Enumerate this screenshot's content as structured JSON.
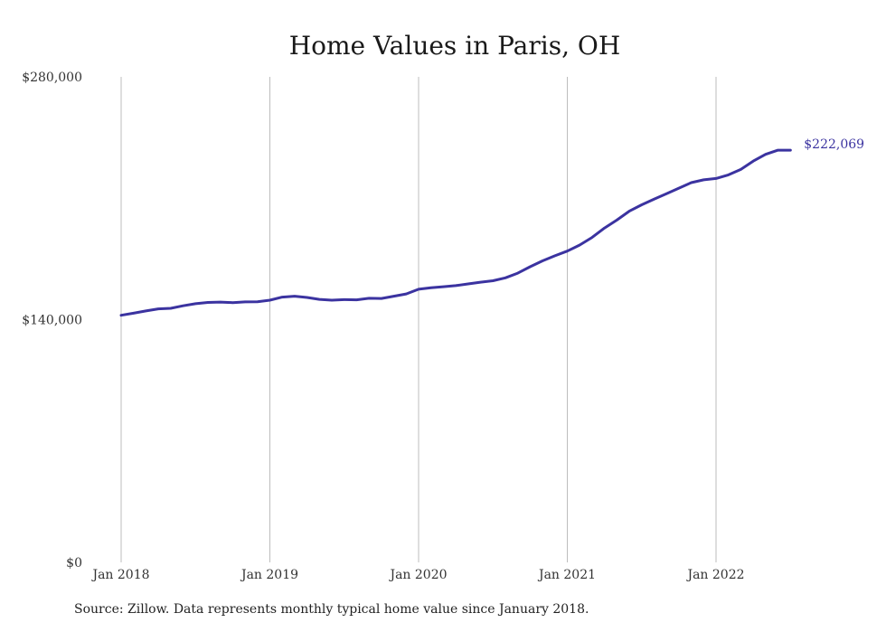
{
  "chart_data": {
    "type": "line",
    "title": "Home Values in Paris, OH",
    "xlabel": "",
    "ylabel": "",
    "ylim": [
      0,
      280000
    ],
    "y_ticks": [
      {
        "value": 0,
        "label": "$0"
      },
      {
        "value": 140000,
        "label": "$140,000"
      },
      {
        "value": 280000,
        "label": "$280,000"
      }
    ],
    "x_ticks": [
      {
        "value": 0,
        "label": "Jan 2018"
      },
      {
        "value": 12,
        "label": "Jan 2019"
      },
      {
        "value": 24,
        "label": "Jan 2020"
      },
      {
        "value": 36,
        "label": "Jan 2021"
      },
      {
        "value": 48,
        "label": "Jan 2022"
      }
    ],
    "x_range": [
      0,
      54
    ],
    "grid": "vertical",
    "series": [
      {
        "color": "#3b33a0",
        "end_label": "$222,069",
        "values": [
          142500,
          143700,
          145000,
          146200,
          146500,
          148000,
          149200,
          149900,
          150100,
          149800,
          150200,
          150300,
          151200,
          153000,
          153500,
          152800,
          151700,
          151200,
          151500,
          151400,
          152300,
          152200,
          153500,
          154800,
          157500,
          158400,
          159000,
          159600,
          160600,
          161600,
          162400,
          164100,
          166800,
          170500,
          173900,
          176800,
          179500,
          183000,
          187400,
          192800,
          197400,
          202500,
          206200,
          209500,
          212600,
          215800,
          219000,
          220600,
          221400,
          223500,
          226600,
          231400,
          235300,
          237700,
          222069
        ]
      }
    ]
  },
  "source_text": "Source: Zillow. Data represents monthly typical home value since January 2018."
}
